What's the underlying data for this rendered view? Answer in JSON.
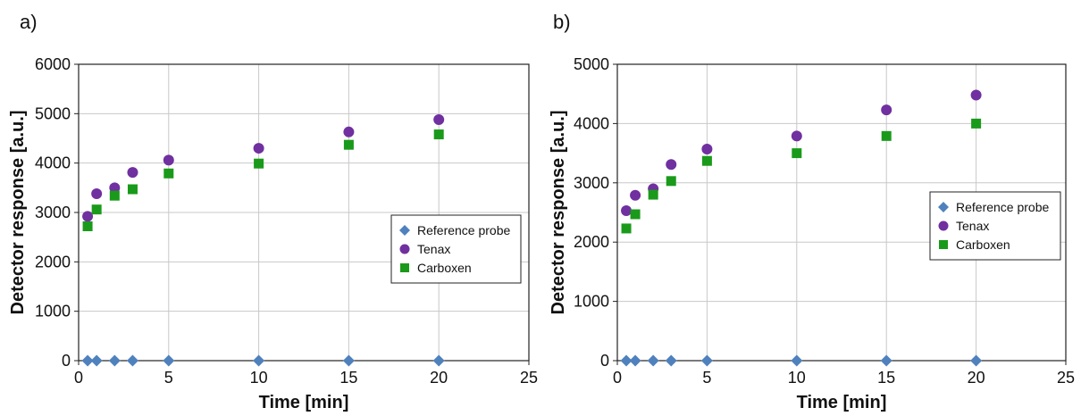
{
  "panels": [
    {
      "label": "a)"
    },
    {
      "label": "b)"
    }
  ],
  "colors": {
    "reference": "#4f81bd",
    "tenax": "#7030a0",
    "carboxen": "#1a9a1a",
    "grid": "#c8c8c8"
  },
  "chart_data": [
    {
      "type": "scatter",
      "title": "",
      "xlabel": "Time [min]",
      "ylabel": "Detector response [a.u.]",
      "xlim": [
        0,
        25
      ],
      "ylim": [
        0,
        6000
      ],
      "xticks": [
        0,
        5,
        10,
        15,
        20,
        25
      ],
      "yticks": [
        0,
        1000,
        2000,
        3000,
        4000,
        5000,
        6000
      ],
      "grid": true,
      "legend_position": "right",
      "series": [
        {
          "name": "Reference probe",
          "marker": "diamond",
          "color": "#4f81bd",
          "x": [
            0.5,
            1,
            2,
            3,
            5,
            10,
            15,
            20
          ],
          "y": [
            0,
            0,
            0,
            0,
            0,
            0,
            0,
            0
          ]
        },
        {
          "name": "Tenax",
          "marker": "circle",
          "color": "#7030a0",
          "x": [
            0.5,
            1,
            2,
            3,
            5,
            10,
            15,
            20
          ],
          "y": [
            2920,
            3380,
            3500,
            3810,
            4060,
            4300,
            4630,
            4880
          ]
        },
        {
          "name": "Carboxen",
          "marker": "square",
          "color": "#1a9a1a",
          "x": [
            0.5,
            1,
            2,
            3,
            5,
            10,
            15,
            20
          ],
          "y": [
            2720,
            3060,
            3340,
            3470,
            3790,
            3990,
            4370,
            4580
          ]
        }
      ]
    },
    {
      "type": "scatter",
      "title": "",
      "xlabel": "Time [min]",
      "ylabel": "Detector response [a.u.]",
      "xlim": [
        0,
        25
      ],
      "ylim": [
        0,
        5000
      ],
      "xticks": [
        0,
        5,
        10,
        15,
        20,
        25
      ],
      "yticks": [
        0,
        1000,
        2000,
        3000,
        4000,
        5000
      ],
      "grid": true,
      "legend_position": "right",
      "series": [
        {
          "name": "Reference probe",
          "marker": "diamond",
          "color": "#4f81bd",
          "x": [
            0.5,
            1,
            2,
            3,
            5,
            10,
            15,
            20
          ],
          "y": [
            0,
            0,
            0,
            0,
            0,
            0,
            0,
            0
          ]
        },
        {
          "name": "Tenax",
          "marker": "circle",
          "color": "#7030a0",
          "x": [
            0.5,
            1,
            2,
            3,
            5,
            10,
            15,
            20
          ],
          "y": [
            2530,
            2790,
            2900,
            3310,
            3570,
            3790,
            4230,
            4480
          ]
        },
        {
          "name": "Carboxen",
          "marker": "square",
          "color": "#1a9a1a",
          "x": [
            0.5,
            1,
            2,
            3,
            5,
            10,
            15,
            20
          ],
          "y": [
            2230,
            2470,
            2800,
            3030,
            3370,
            3500,
            3790,
            4000
          ]
        }
      ]
    }
  ]
}
